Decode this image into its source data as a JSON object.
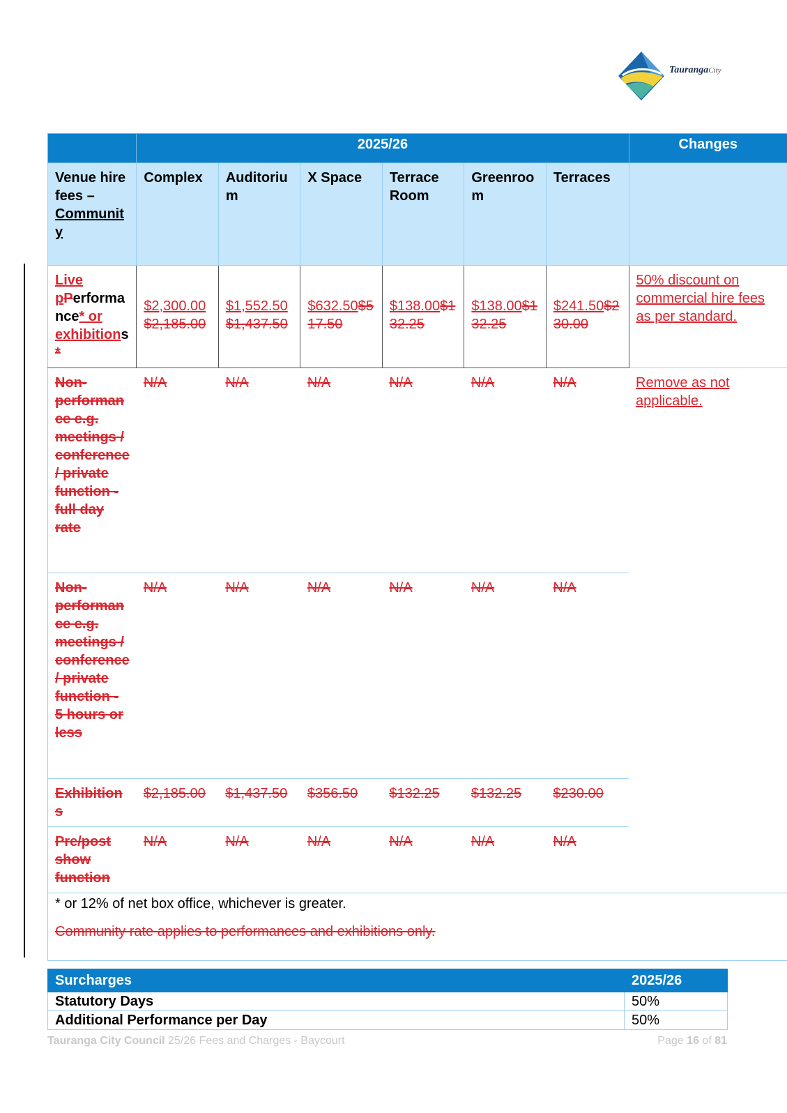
{
  "logo": {
    "brand": "Tauranga",
    "city": "City"
  },
  "venue_table": {
    "year_header": "2025/26",
    "changes_header": "Changes",
    "row_header_parts": [
      "Venue hire fees – ",
      "Community"
    ],
    "columns": [
      "Complex",
      "Auditorium",
      "X Space",
      "Terrace Room",
      "Greenroom",
      "Terraces"
    ],
    "live_row": {
      "label": {
        "ins1": "Live ",
        "ins2": "p",
        "del1": "P",
        "normal1": "erformance",
        "ins3": "* or exhibition",
        "normal2": "s",
        "del2": "*"
      },
      "values": [
        {
          "new": "$2,300.00",
          "old": "$2,185.00"
        },
        {
          "new": "$1,552.50",
          "old": "$1,437.50"
        },
        {
          "new": "$632.50",
          "old": "$517.50"
        },
        {
          "new": "$138.00",
          "old": "$132.25"
        },
        {
          "new": "$138.00",
          "old": "$132.25"
        },
        {
          "new": "$241.50",
          "old": "$230.00"
        }
      ],
      "change": "50% discount on commercial hire fees as per standard."
    },
    "deleted_rows": [
      {
        "label": "Non-performance e.g. meetings / conference / private function - full day rate",
        "values": [
          "N/A",
          "N/A",
          "N/A",
          "N/A",
          "N/A",
          "N/A"
        ]
      },
      {
        "label": "Non-performance e.g. meetings / conference / private function - 5 hours or less",
        "values": [
          "N/A",
          "N/A",
          "N/A",
          "N/A",
          "N/A",
          "N/A"
        ]
      },
      {
        "label": "Exhibitions",
        "values": [
          "$2,185.00",
          "$1,437.50",
          "$356.50",
          "$132.25",
          "$132.25",
          "$230.00"
        ]
      },
      {
        "label": "Pre/post show function",
        "values": [
          "N/A",
          "N/A",
          "N/A",
          "N/A",
          "N/A",
          "N/A"
        ]
      }
    ],
    "deleted_change": "Remove as not applicable.",
    "note1": "* or 12% of net box office, whichever is greater.",
    "note2": "Community rate applies to performances and exhibitions only."
  },
  "surcharges": {
    "header_label": "Surcharges",
    "header_year": "2025/26",
    "rows": [
      {
        "label": "Statutory Days",
        "value": "50%"
      },
      {
        "label": "Additional Performance per Day",
        "value": "50%"
      }
    ]
  },
  "footer": {
    "org": "Tauranga City Council",
    "doc": " 25/26 Fees and Charges - Baycourt",
    "page_prefix": "Page ",
    "page": "16",
    "of": " of ",
    "total": "81"
  }
}
